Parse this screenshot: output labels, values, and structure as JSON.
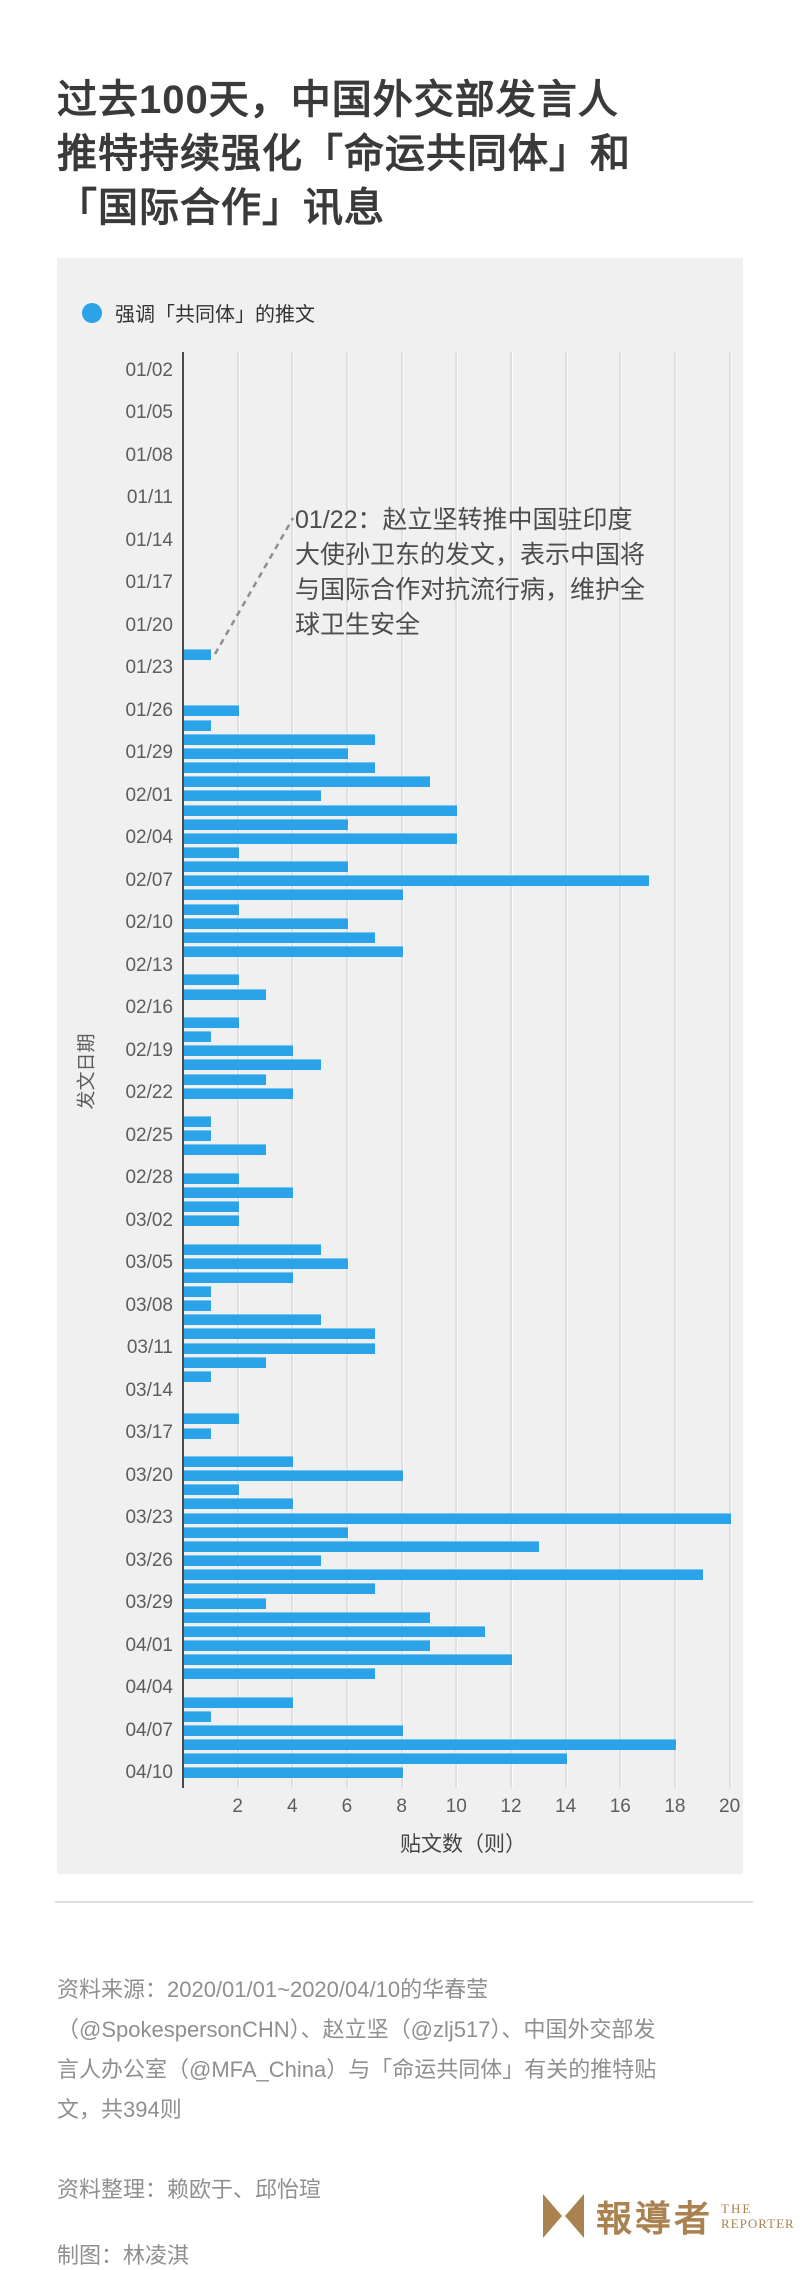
{
  "header": {
    "title": "过去100天，中国外交部发言人推特持续强化「命运共同体」和「国际合作」讯息",
    "title_lines": [
      "过去100天，中国外交部发言人",
      "推特持续强化「命运共同体」和",
      "「国际合作」讯息"
    ]
  },
  "legend": {
    "label": "强调「共同体」的推文",
    "dot_color": "#2ba3e8"
  },
  "annotation": {
    "text": "01/22：赵立坚转推中国驻印度大使孙卫东的发文，表示中国将与国际合作对抗流行病，维护全球卫生安全",
    "lines": [
      "01/22：赵立坚转推中国驻印度",
      "大使孙卫东的发文，表示中国将",
      "与国际合作对抗流行病，维护全",
      "球卫生安全"
    ]
  },
  "chart_data": {
    "type": "bar",
    "orientation": "horizontal",
    "series_label": "强调「共同体」的推文",
    "xlabel": "贴文数（则）",
    "ylabel": "发文日期",
    "xlim": [
      0,
      21
    ],
    "xticks": [
      2,
      4,
      6,
      8,
      10,
      12,
      14,
      16,
      18,
      20
    ],
    "ytick_every": 3,
    "grid": true,
    "bar_color": "#2ba3e8",
    "categories": [
      "01/02",
      "01/03",
      "01/04",
      "01/05",
      "01/06",
      "01/07",
      "01/08",
      "01/09",
      "01/10",
      "01/11",
      "01/12",
      "01/13",
      "01/14",
      "01/15",
      "01/16",
      "01/17",
      "01/18",
      "01/19",
      "01/20",
      "01/21",
      "01/22",
      "01/23",
      "01/24",
      "01/25",
      "01/26",
      "01/27",
      "01/28",
      "01/29",
      "01/30",
      "01/31",
      "02/01",
      "02/02",
      "02/03",
      "02/04",
      "02/05",
      "02/06",
      "02/07",
      "02/08",
      "02/09",
      "02/10",
      "02/11",
      "02/12",
      "02/13",
      "02/14",
      "02/15",
      "02/16",
      "02/17",
      "02/18",
      "02/19",
      "02/20",
      "02/21",
      "02/22",
      "02/23",
      "02/24",
      "02/25",
      "02/26",
      "02/27",
      "02/28",
      "02/29",
      "03/01",
      "03/02",
      "03/03",
      "03/04",
      "03/05",
      "03/06",
      "03/07",
      "03/08",
      "03/09",
      "03/10",
      "03/11",
      "03/12",
      "03/13",
      "03/14",
      "03/15",
      "03/16",
      "03/17",
      "03/18",
      "03/19",
      "03/20",
      "03/21",
      "03/22",
      "03/23",
      "03/24",
      "03/25",
      "03/26",
      "03/27",
      "03/28",
      "03/29",
      "03/30",
      "03/31",
      "04/01",
      "04/02",
      "04/03",
      "04/04",
      "04/05",
      "04/06",
      "04/07",
      "04/08",
      "04/09",
      "04/10"
    ],
    "values": [
      0,
      0,
      0,
      0,
      0,
      0,
      0,
      0,
      0,
      0,
      0,
      0,
      0,
      0,
      0,
      0,
      0,
      0,
      0,
      0,
      1,
      0,
      0,
      0,
      2,
      1,
      7,
      6,
      7,
      9,
      5,
      10,
      6,
      10,
      2,
      6,
      17,
      8,
      2,
      6,
      7,
      8,
      0,
      2,
      3,
      0,
      2,
      1,
      4,
      5,
      3,
      4,
      0,
      1,
      1,
      3,
      0,
      2,
      4,
      2,
      2,
      0,
      5,
      6,
      4,
      1,
      1,
      5,
      7,
      7,
      3,
      1,
      0,
      0,
      2,
      1,
      0,
      4,
      8,
      2,
      4,
      20,
      6,
      13,
      5,
      19,
      7,
      3,
      9,
      11,
      9,
      12,
      7,
      0,
      4,
      1,
      8,
      18,
      14,
      8
    ],
    "total_note": 394
  },
  "footer": {
    "source": "资料来源：2020/01/01~2020/04/10的华春莹（@SpokespersonCHN）、赵立坚（@zlj517）、中国外交部发言人办公室（@MFA_China）与「命运共同体」有关的推特贴文，共394则",
    "source_lines": [
      "资料来源：2020/01/01~2020/04/10的华春莹",
      "（@SpokespersonCHN）、赵立坚（@zlj517）、中国外交部发",
      "言人办公室（@MFA_China）与「命运共同体」有关的推特贴",
      "文，共394则"
    ],
    "editors": "资料整理：赖欧于、邱怡瑄",
    "credit": "制图：林凌淇",
    "logo": {
      "zh": "報導者",
      "en_line1": "THE",
      "en_line2": "REPORTER",
      "color": "#a9824f"
    }
  }
}
